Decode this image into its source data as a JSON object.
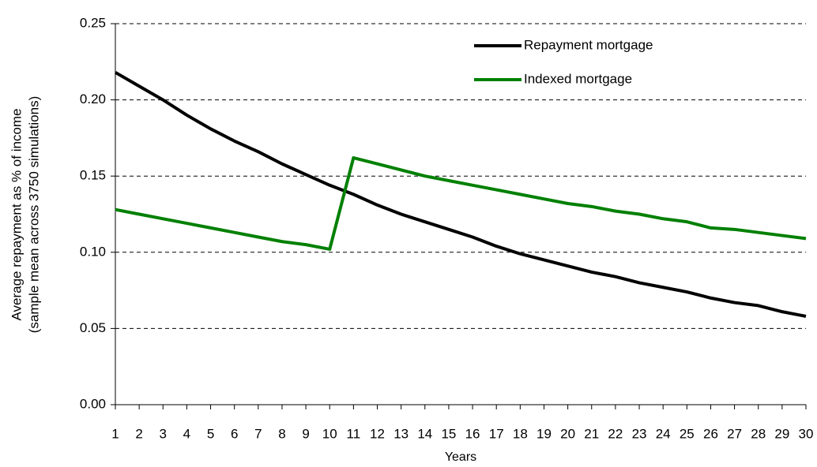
{
  "chart_data": {
    "type": "line",
    "xlabel": "Years",
    "ylabel": [
      "Average repayment as % of income",
      "(sample mean across 3750 simulations)"
    ],
    "x": [
      1,
      2,
      3,
      4,
      5,
      6,
      7,
      8,
      9,
      10,
      11,
      12,
      13,
      14,
      15,
      16,
      17,
      18,
      19,
      20,
      21,
      22,
      23,
      24,
      25,
      26,
      27,
      28,
      29,
      30
    ],
    "xlim": [
      1,
      30
    ],
    "xticks": [
      1,
      2,
      3,
      4,
      5,
      6,
      7,
      8,
      9,
      10,
      11,
      12,
      13,
      14,
      15,
      16,
      17,
      18,
      19,
      20,
      21,
      22,
      23,
      24,
      25,
      26,
      27,
      28,
      29,
      30
    ],
    "ylim": [
      0,
      0.25
    ],
    "yticks": [
      {
        "value": 0,
        "label": "0.00"
      },
      0.05,
      {
        "value": 0.1,
        "label": "0.10"
      },
      0.15,
      {
        "value": 0.2,
        "label": "0.20"
      },
      0.25
    ],
    "grid": true,
    "legend": "upper right",
    "series": [
      {
        "name": "Repayment mortgage",
        "color": "#000000",
        "values": [
          0.218,
          0.209,
          0.2,
          0.19,
          0.181,
          0.173,
          0.166,
          0.158,
          0.151,
          0.144,
          0.138,
          0.131,
          0.125,
          0.12,
          0.115,
          0.11,
          0.104,
          0.099,
          0.095,
          0.091,
          0.087,
          0.084,
          0.08,
          0.077,
          0.074,
          0.07,
          0.067,
          0.065,
          0.061,
          0.058
        ]
      },
      {
        "name": "Indexed mortgage",
        "color": "#008000",
        "values": [
          0.128,
          0.125,
          0.122,
          0.119,
          0.116,
          0.113,
          0.11,
          0.107,
          0.105,
          0.102,
          0.162,
          0.158,
          0.154,
          0.15,
          0.147,
          0.144,
          0.141,
          0.138,
          0.135,
          0.132,
          0.13,
          0.127,
          0.125,
          0.122,
          0.12,
          0.116,
          0.115,
          0.113,
          0.111,
          0.109
        ]
      }
    ]
  }
}
